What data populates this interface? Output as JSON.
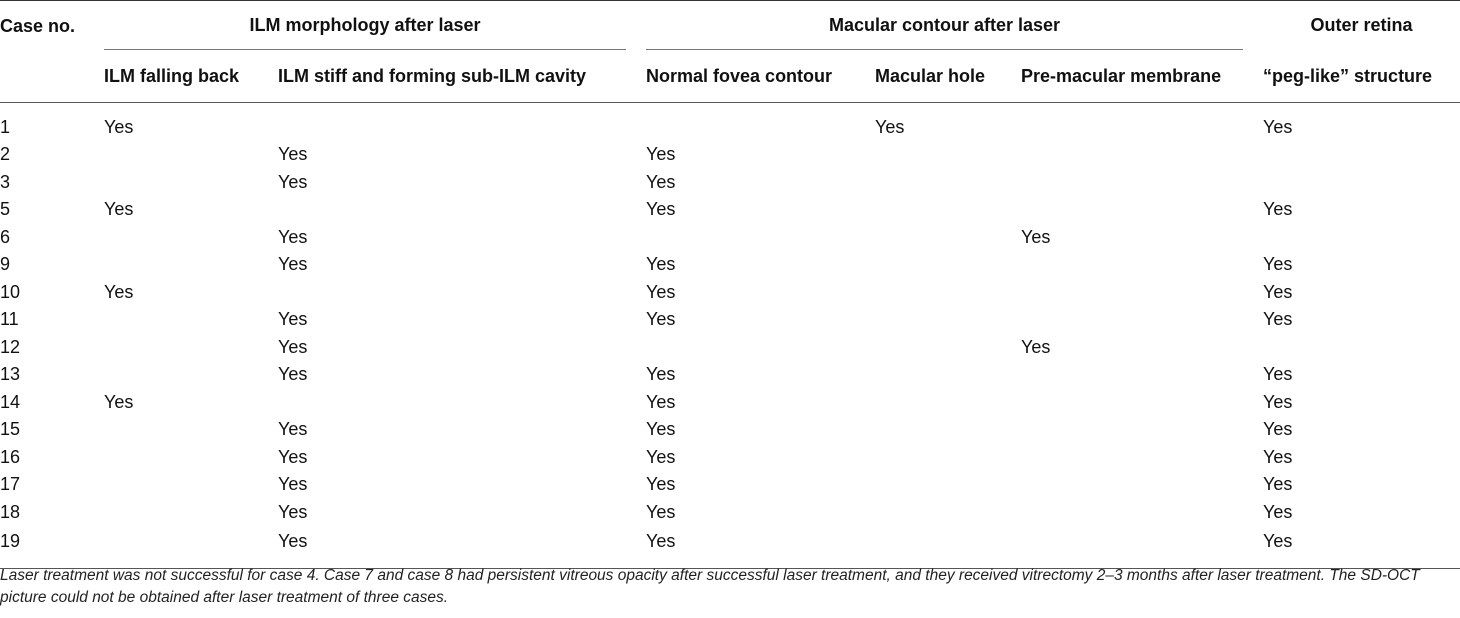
{
  "table": {
    "headers": {
      "case_no": "Case no.",
      "group_ilm": "ILM morphology after laser",
      "group_macular": "Macular contour after laser",
      "group_outer": "Outer retina",
      "ilm_falling_back": "ILM falling back",
      "ilm_stiff": "ILM stiff and forming sub-ILM cavity",
      "normal_fovea": "Normal fovea contour",
      "macular_hole": "Macular hole",
      "pre_macular_membrane": "Pre-macular membrane",
      "peg_like": "“peg-like” structure"
    },
    "rows": [
      {
        "case": "1",
        "falling": "Yes",
        "stiff": "",
        "normal": "",
        "hole": "Yes",
        "membrane": "",
        "peg": "Yes"
      },
      {
        "case": "2",
        "falling": "",
        "stiff": "Yes",
        "normal": "Yes",
        "hole": "",
        "membrane": "",
        "peg": ""
      },
      {
        "case": "3",
        "falling": "",
        "stiff": "Yes",
        "normal": "Yes",
        "hole": "",
        "membrane": "",
        "peg": ""
      },
      {
        "case": "5",
        "falling": "Yes",
        "stiff": "",
        "normal": "Yes",
        "hole": "",
        "membrane": "",
        "peg": "Yes"
      },
      {
        "case": "6",
        "falling": "",
        "stiff": "Yes",
        "normal": "",
        "hole": "",
        "membrane": "Yes",
        "peg": ""
      },
      {
        "case": "9",
        "falling": "",
        "stiff": "Yes",
        "normal": "Yes",
        "hole": "",
        "membrane": "",
        "peg": "Yes"
      },
      {
        "case": "10",
        "falling": "Yes",
        "stiff": "",
        "normal": "Yes",
        "hole": "",
        "membrane": "",
        "peg": "Yes"
      },
      {
        "case": "11",
        "falling": "",
        "stiff": "Yes",
        "normal": "Yes",
        "hole": "",
        "membrane": "",
        "peg": "Yes"
      },
      {
        "case": "12",
        "falling": "",
        "stiff": "Yes",
        "normal": "",
        "hole": "",
        "membrane": "Yes",
        "peg": ""
      },
      {
        "case": "13",
        "falling": "",
        "stiff": "Yes",
        "normal": "Yes",
        "hole": "",
        "membrane": "",
        "peg": "Yes"
      },
      {
        "case": "14",
        "falling": "Yes",
        "stiff": "",
        "normal": "Yes",
        "hole": "",
        "membrane": "",
        "peg": "Yes"
      },
      {
        "case": "15",
        "falling": "",
        "stiff": "Yes",
        "normal": "Yes",
        "hole": "",
        "membrane": "",
        "peg": "Yes"
      },
      {
        "case": "16",
        "falling": "",
        "stiff": "Yes",
        "normal": "Yes",
        "hole": "",
        "membrane": "",
        "peg": "Yes"
      },
      {
        "case": "17",
        "falling": "",
        "stiff": "Yes",
        "normal": "Yes",
        "hole": "",
        "membrane": "",
        "peg": "Yes"
      },
      {
        "case": "18",
        "falling": "",
        "stiff": "Yes",
        "normal": "Yes",
        "hole": "",
        "membrane": "",
        "peg": "Yes"
      },
      {
        "case": "19",
        "falling": "",
        "stiff": "Yes",
        "normal": "Yes",
        "hole": "",
        "membrane": "",
        "peg": "Yes"
      }
    ]
  },
  "footnote": "Laser treatment was not successful for case 4. Case 7 and case 8 had persistent vitreous opacity after successful laser treatment, and they received vitrectomy 2–3 months after laser treatment. The SD-OCT picture could not be obtained after laser treatment of three cases."
}
